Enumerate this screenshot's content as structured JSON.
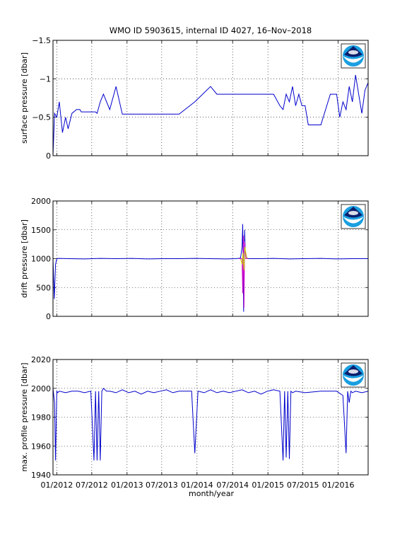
{
  "title": "WMO ID 5903615, internal ID 4027, 16–Nov–2018",
  "xlabel": "month/year",
  "x_ticks": [
    "01/2012",
    "07/2012",
    "01/2013",
    "07/2013",
    "01/2014",
    "07/2014",
    "01/2015",
    "07/2015",
    "01/2016"
  ],
  "logo": "noaa-logo",
  "colors": {
    "line": "#0000cc",
    "axis": "#000000",
    "grid": "#000000"
  },
  "chart_data": [
    {
      "type": "line",
      "ylabel": "surface pressure [dbar]",
      "ylim": [
        -1.5,
        0
      ],
      "y_ticks": [
        "0",
        "−0.5",
        "−1",
        "−1.5"
      ],
      "y_tick_values": [
        0,
        -0.5,
        -1,
        -1.5
      ],
      "grid": true,
      "series": [
        {
          "color": "#0000cc",
          "x": [
            0.0,
            0.005,
            0.012,
            0.02,
            0.03,
            0.04,
            0.048,
            0.06,
            0.075,
            0.085,
            0.09,
            0.1,
            0.11,
            0.125,
            0.135,
            0.14,
            0.15,
            0.16,
            0.18,
            0.2,
            0.22,
            0.23,
            0.25,
            0.26,
            0.27,
            0.28,
            0.3,
            0.31,
            0.33,
            0.34,
            0.35,
            0.36,
            0.4,
            0.45,
            0.5,
            0.52,
            0.53,
            0.54,
            0.55,
            0.56,
            0.57,
            0.58,
            0.6,
            0.7,
            0.72,
            0.73,
            0.74,
            0.75,
            0.76,
            0.77,
            0.78,
            0.79,
            0.8,
            0.81,
            0.82,
            0.83,
            0.85,
            0.88,
            0.9,
            0.91,
            0.92,
            0.93,
            0.94,
            0.95,
            0.96,
            0.97,
            0.98,
            0.99,
            1.0
          ],
          "y": [
            0.0,
            -0.55,
            -0.5,
            -0.7,
            -0.3,
            -0.5,
            -0.35,
            -0.55,
            -0.6,
            -0.6,
            -0.57,
            -0.57,
            -0.57,
            -0.57,
            -0.57,
            -0.55,
            -0.7,
            -0.8,
            -0.6,
            -0.9,
            -0.54,
            -0.54,
            -0.54,
            -0.54,
            -0.54,
            -0.54,
            -0.54,
            -0.54,
            -0.54,
            -0.54,
            -0.54,
            -0.54,
            -0.54,
            -0.7,
            -0.9,
            -0.8,
            -0.8,
            -0.8,
            -0.8,
            -0.8,
            -0.8,
            -0.8,
            -0.8,
            -0.8,
            -0.65,
            -0.6,
            -0.8,
            -0.7,
            -0.9,
            -0.65,
            -0.8,
            -0.65,
            -0.65,
            -0.4,
            -0.4,
            -0.4,
            -0.4,
            -0.8,
            -0.8,
            -0.5,
            -0.7,
            -0.6,
            -0.9,
            -0.7,
            -1.05,
            -0.8,
            -0.55,
            -0.85,
            -0.95
          ]
        }
      ]
    },
    {
      "type": "line",
      "ylabel": "drift pressure [dbar]",
      "ylim": [
        2000,
        0
      ],
      "y_ticks": [
        "0",
        "500",
        "1000",
        "1500",
        "2000"
      ],
      "y_tick_values": [
        0,
        500,
        1000,
        1500,
        2000
      ],
      "grid": true,
      "series": [
        {
          "color": "#0000cc",
          "x": [
            0.0,
            0.004,
            0.008,
            0.012,
            0.02,
            0.05,
            0.1,
            0.15,
            0.2,
            0.25,
            0.3,
            0.35,
            0.4,
            0.45,
            0.5,
            0.55,
            0.58,
            0.595,
            0.6,
            0.602,
            0.605,
            0.608,
            0.61,
            0.615,
            0.62,
            0.65,
            0.7,
            0.75,
            0.8,
            0.85,
            0.9,
            0.95,
            1.0
          ],
          "y": [
            1000,
            300,
            900,
            1000,
            1005,
            1000,
            995,
            1005,
            1000,
            1005,
            995,
            1000,
            1000,
            1005,
            1000,
            995,
            1000,
            1010,
            1200,
            1600,
            80,
            1500,
            1100,
            1010,
            1000,
            1000,
            1005,
            995,
            1000,
            1005,
            995,
            1000,
            1000
          ]
        },
        {
          "color": "#cc00cc",
          "x": [
            0.59,
            0.6,
            0.602,
            0.604,
            0.606,
            0.608,
            0.612,
            0.62
          ],
          "y": [
            1000,
            1000,
            400,
            1400,
            150,
            1300,
            1000,
            1000
          ]
        },
        {
          "color": "#cccc00",
          "x": [
            0.595,
            0.6,
            0.603,
            0.606,
            0.609,
            0.615
          ],
          "y": [
            1000,
            900,
            1100,
            800,
            1200,
            1000
          ]
        }
      ]
    },
    {
      "type": "line",
      "ylabel": "max. profile pressure [dbar]",
      "ylim": [
        2020,
        1940
      ],
      "y_ticks": [
        "1940",
        "1960",
        "1980",
        "2000",
        "2020"
      ],
      "y_tick_values": [
        1940,
        1960,
        1980,
        2000,
        2020
      ],
      "grid": true,
      "series": [
        {
          "color": "#0000cc",
          "x": [
            0.0,
            0.005,
            0.008,
            0.01,
            0.012,
            0.015,
            0.02,
            0.04,
            0.06,
            0.08,
            0.1,
            0.12,
            0.13,
            0.135,
            0.14,
            0.145,
            0.15,
            0.155,
            0.16,
            0.17,
            0.18,
            0.2,
            0.22,
            0.24,
            0.26,
            0.28,
            0.3,
            0.32,
            0.34,
            0.36,
            0.38,
            0.4,
            0.44,
            0.45,
            0.46,
            0.48,
            0.5,
            0.52,
            0.54,
            0.56,
            0.58,
            0.6,
            0.62,
            0.64,
            0.66,
            0.68,
            0.7,
            0.72,
            0.73,
            0.735,
            0.74,
            0.745,
            0.75,
            0.755,
            0.76,
            0.77,
            0.8,
            0.85,
            0.9,
            0.92,
            0.93,
            0.935,
            0.94,
            0.945,
            0.95,
            0.96,
            0.98,
            1.0
          ],
          "y": [
            2000,
            1990,
            1950,
            1975,
            1998,
            1997,
            1998,
            1997,
            1998,
            1998,
            1997,
            1998,
            1950,
            1998,
            1950,
            1998,
            1950,
            1998,
            2000,
            1998,
            1998,
            1997,
            1999,
            1997,
            1998,
            1996,
            1998,
            1997,
            1998,
            1999,
            1997,
            1998,
            1998,
            1955,
            1998,
            1997,
            1999,
            1997,
            1998,
            1997,
            1998,
            1999,
            1997,
            1998,
            1996,
            1998,
            1999,
            1998,
            1950,
            1998,
            1952,
            1998,
            1951,
            1998,
            1997,
            1998,
            1997,
            1998,
            1998,
            1995,
            1955,
            1998,
            1990,
            1998,
            1997,
            1998,
            1997,
            1998
          ]
        }
      ]
    }
  ]
}
